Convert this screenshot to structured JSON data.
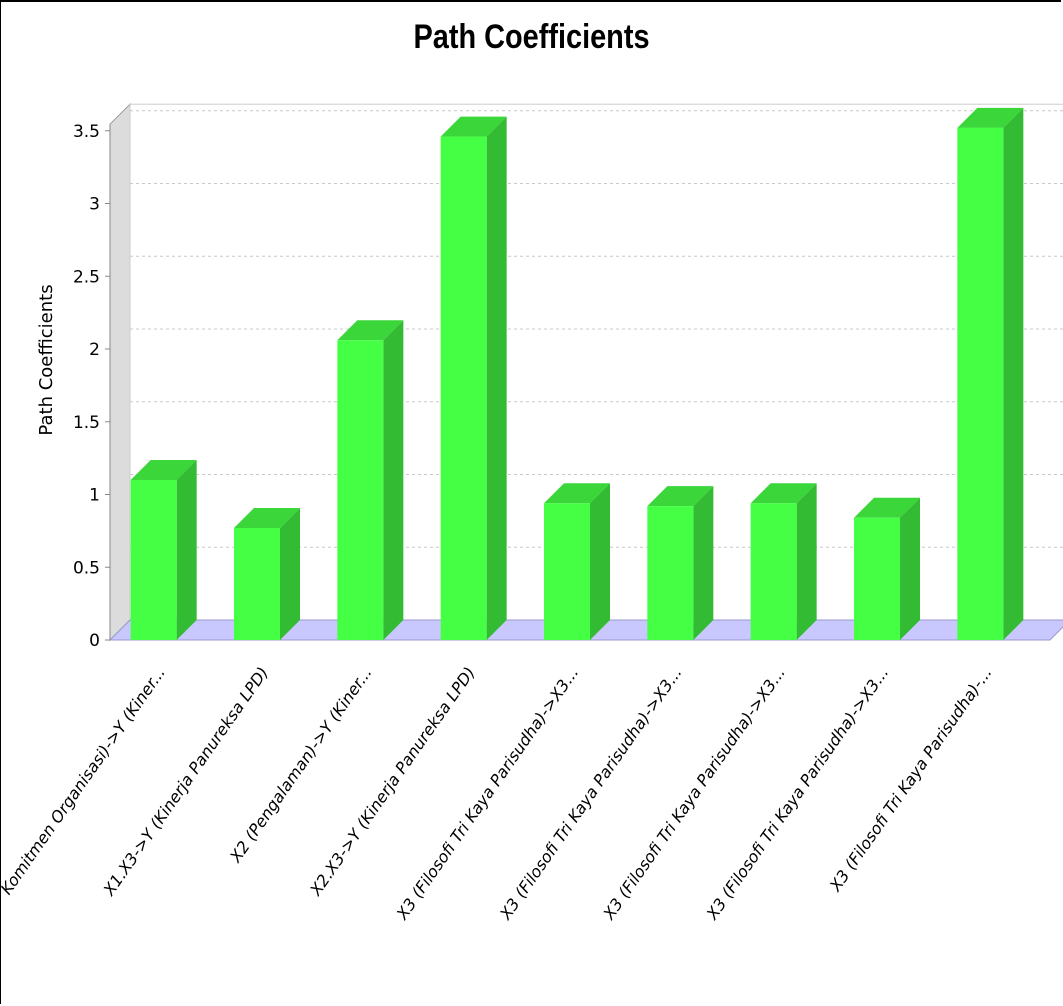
{
  "chart_data": {
    "type": "bar",
    "title": "Path Coefficients",
    "xlabel": "",
    "ylabel": "Path Coefficients",
    "ylim": [
      0,
      3.6
    ],
    "yticks": [
      "0",
      "0.5",
      "1",
      "1.5",
      "2",
      "2.5",
      "3",
      "3.5"
    ],
    "grid": true,
    "style": "3d",
    "colors": {
      "bar": "#44ff44",
      "bar_side": "#33bb33",
      "bar_top": "#3ad63a",
      "floor": "#c8c8ff",
      "wall": "#dcdcdc"
    },
    "categories": [
      "Komitmen Organisasi)->Y (Kiner...",
      "X1.X3->Y (Kinerja Panureksa LPD)",
      "X2 (Pengalaman)->Y (Kiner...",
      "X2.X3->Y (Kinerja Panureksa LPD)",
      "X3 (Filosofi Tri Kaya Parisudha)->X3...",
      "X3 (Filosofi Tri Kaya Parisudha)->X3...",
      "X3 (Filosofi Tri Kaya Parisudha)->X3...",
      "X3 (Filosofi Tri Kaya Parisudha)->X3...",
      "X3 (Filosofi Tri Kaya Parisudha)-..."
    ],
    "values": [
      1.1,
      0.77,
      2.06,
      3.46,
      0.94,
      0.92,
      0.94,
      0.84,
      3.52
    ]
  }
}
